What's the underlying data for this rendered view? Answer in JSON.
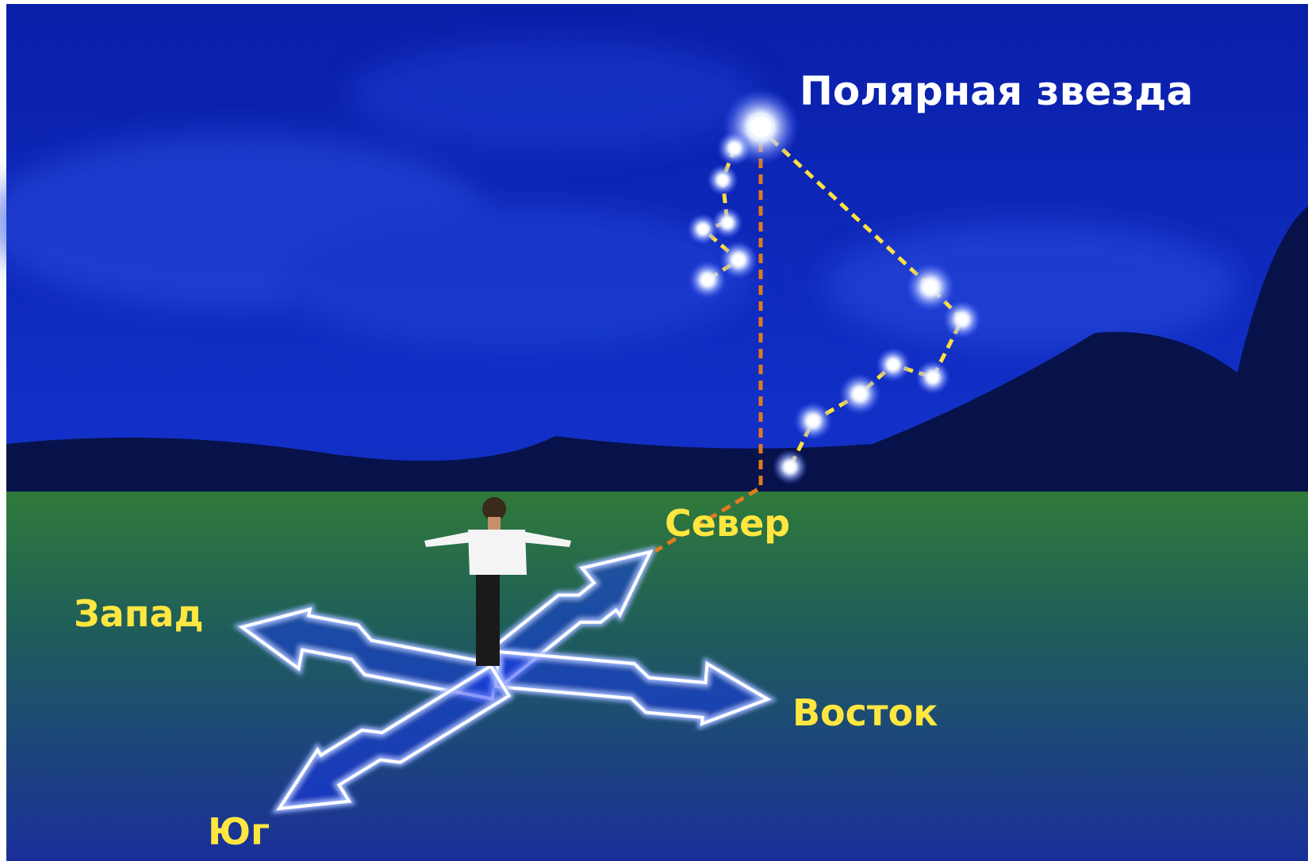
{
  "labels": {
    "polaris": "Полярная звезда",
    "north": "Север",
    "west": "Запад",
    "east": "Восток",
    "south": "Юг"
  }
}
